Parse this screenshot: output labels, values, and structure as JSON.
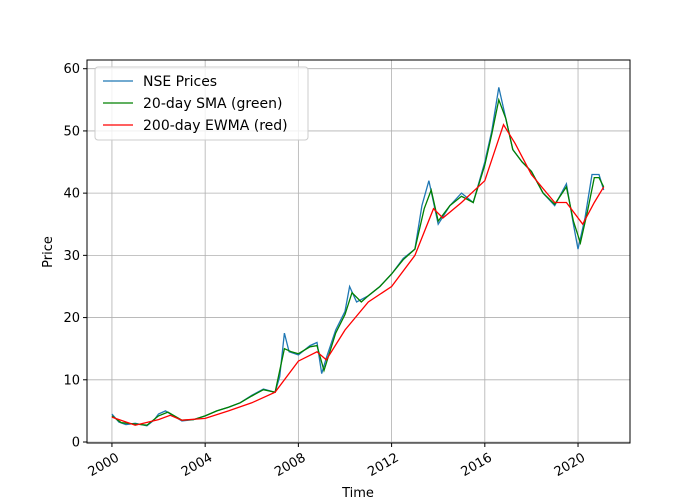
{
  "chart_data": {
    "type": "line",
    "xlabel": "Time",
    "ylabel": "Price",
    "xlim": [
      1998.93,
      2022.23
    ],
    "ylim": [
      -0.16,
      61.4
    ],
    "xticks": [
      2000,
      2004,
      2008,
      2012,
      2016,
      2020
    ],
    "yticks": [
      0,
      10,
      20,
      30,
      40,
      50,
      60
    ],
    "grid": true,
    "legend": "upper left",
    "series": [
      {
        "name": "NSE Prices",
        "color": "#1f77b4",
        "x": [
          2000.0,
          2000.3,
          2000.6,
          2001.0,
          2001.5,
          2001.8,
          2002.0,
          2002.3,
          2002.6,
          2003.0,
          2003.5,
          2004.0,
          2004.5,
          2005.0,
          2005.5,
          2006.0,
          2006.5,
          2007.0,
          2007.2,
          2007.4,
          2007.6,
          2008.0,
          2008.5,
          2008.8,
          2009.0,
          2009.2,
          2009.6,
          2010.0,
          2010.2,
          2010.5,
          2011.0,
          2011.5,
          2012.0,
          2012.5,
          2013.0,
          2013.3,
          2013.6,
          2014.0,
          2014.5,
          2015.0,
          2015.5,
          2016.0,
          2016.3,
          2016.6,
          2016.9,
          2017.2,
          2017.6,
          2018.0,
          2018.5,
          2019.0,
          2019.5,
          2019.8,
          2020.0,
          2020.3,
          2020.6,
          2020.9,
          2021.1
        ],
        "values": [
          4.5,
          3.2,
          2.8,
          3.0,
          2.6,
          3.5,
          4.5,
          5.0,
          4.3,
          3.4,
          3.6,
          4.2,
          5.0,
          5.6,
          6.3,
          7.5,
          8.5,
          8.0,
          10.5,
          17.5,
          14.5,
          14.0,
          15.5,
          16.0,
          11.0,
          13.5,
          18.0,
          21.0,
          25.0,
          22.5,
          23.5,
          25.0,
          27.0,
          29.5,
          31.0,
          38.0,
          42.0,
          35.0,
          38.0,
          40.0,
          38.5,
          45.0,
          50.0,
          57.0,
          52.0,
          47.0,
          45.0,
          43.5,
          40.0,
          38.0,
          41.5,
          35.0,
          31.0,
          36.0,
          43.0,
          43.0,
          40.5
        ]
      },
      {
        "name": "20-day SMA (green)",
        "color": "#008000",
        "x": [
          2000.0,
          2000.4,
          2001.0,
          2001.5,
          2002.0,
          2002.4,
          2003.0,
          2003.5,
          2004.0,
          2004.5,
          2005.0,
          2005.5,
          2006.0,
          2006.5,
          2007.0,
          2007.4,
          2007.7,
          2008.0,
          2008.5,
          2008.8,
          2009.1,
          2009.6,
          2010.0,
          2010.3,
          2010.7,
          2011.0,
          2011.5,
          2012.0,
          2012.5,
          2013.0,
          2013.4,
          2013.7,
          2014.0,
          2014.5,
          2015.0,
          2015.5,
          2016.0,
          2016.3,
          2016.6,
          2016.9,
          2017.2,
          2017.6,
          2018.0,
          2018.5,
          2019.0,
          2019.5,
          2019.8,
          2020.1,
          2020.4,
          2020.7,
          2020.9,
          2021.1
        ],
        "values": [
          4.2,
          3.1,
          2.9,
          2.7,
          4.2,
          4.8,
          3.5,
          3.6,
          4.2,
          5.0,
          5.6,
          6.3,
          7.4,
          8.4,
          8.0,
          15.0,
          14.5,
          14.2,
          15.3,
          15.5,
          11.5,
          17.5,
          20.5,
          24.0,
          22.5,
          23.5,
          25.0,
          27.0,
          29.3,
          31.0,
          37.5,
          40.5,
          35.5,
          38.0,
          39.5,
          38.5,
          44.5,
          49.5,
          55.0,
          52.0,
          47.0,
          45.0,
          43.5,
          40.0,
          38.2,
          41.0,
          35.5,
          32.0,
          37.0,
          42.5,
          42.5,
          41.0
        ]
      },
      {
        "name": "200-day EWMA (red)",
        "color": "#ff0000",
        "x": [
          2000.0,
          2001.0,
          2002.0,
          2002.5,
          2003.0,
          2004.0,
          2005.0,
          2006.0,
          2007.0,
          2008.0,
          2008.8,
          2009.2,
          2010.0,
          2011.0,
          2012.0,
          2013.0,
          2013.8,
          2014.2,
          2015.0,
          2016.0,
          2016.8,
          2017.3,
          2018.0,
          2019.0,
          2019.5,
          2020.2,
          2020.7,
          2021.1
        ],
        "values": [
          4.0,
          2.7,
          3.6,
          4.3,
          3.5,
          3.8,
          5.0,
          6.3,
          8.0,
          13.0,
          14.5,
          13.2,
          18.0,
          22.5,
          25.0,
          30.0,
          37.5,
          36.0,
          38.5,
          42.0,
          51.0,
          48.0,
          43.0,
          38.5,
          38.5,
          35.0,
          38.5,
          41.0
        ]
      }
    ]
  }
}
